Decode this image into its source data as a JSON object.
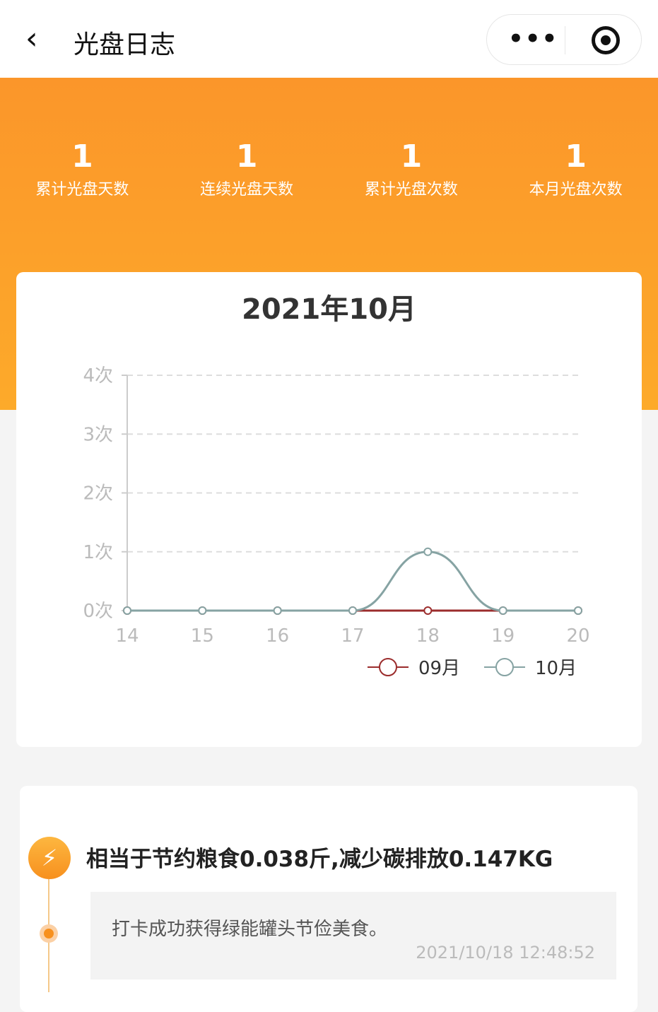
{
  "nav": {
    "title": "光盘日志",
    "back_icon": "chevron-left-icon",
    "more_label": "•••"
  },
  "stats": [
    {
      "value": "1",
      "label": "累计光盘天数"
    },
    {
      "value": "1",
      "label": "连续光盘天数"
    },
    {
      "value": "1",
      "label": "累计光盘次数"
    },
    {
      "value": "1",
      "label": "本月光盘次数"
    }
  ],
  "colors": {
    "banner": "#fb962a",
    "series_09": "#9b2c2c",
    "series_10": "#86a3a3"
  },
  "chart_data": {
    "type": "line",
    "title": "2021年10月",
    "x": [
      14,
      15,
      16,
      17,
      18,
      19,
      20
    ],
    "x_tick_labels": [
      "14",
      "15",
      "16",
      "17",
      "18",
      "19",
      "20"
    ],
    "y_tick_labels": [
      "0次",
      "1次",
      "2次",
      "3次",
      "4次"
    ],
    "ylim": [
      0,
      4
    ],
    "grid": true,
    "legend_position": "bottom-right",
    "series": [
      {
        "name": "09月",
        "color": "#9b2c2c",
        "values": [
          0,
          0,
          0,
          0,
          0,
          0,
          0
        ]
      },
      {
        "name": "10月",
        "color": "#86a3a3",
        "values": [
          0,
          0,
          0,
          0,
          1,
          0,
          0
        ],
        "smooth": true
      }
    ]
  },
  "record": {
    "headline": "相当于节约粮食0.038斤,减少碳排放0.147KG",
    "message": "打卡成功获得绿能罐头节俭美食。",
    "time": "2021/10/18 12:48:52"
  }
}
